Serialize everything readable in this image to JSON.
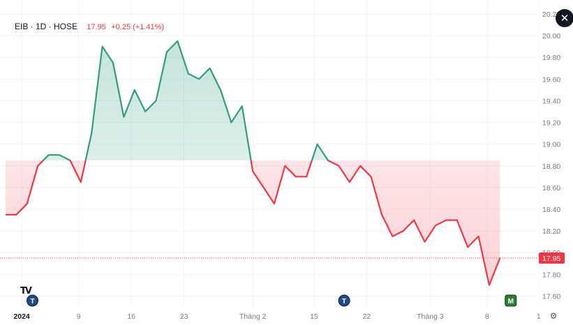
{
  "header": {
    "symbol": "EIB · 1D · HOSE",
    "price": "17.95",
    "change": "+0.25 (+1.41%)"
  },
  "close_icon": "close-icon",
  "logo": "TV",
  "settings_icon": "gear-icon",
  "colors": {
    "up": "#2e9e7e",
    "down": "#f23645",
    "grid": "#f0f3fa",
    "axis_text": "#787b86",
    "price_label_bg": "#f23645"
  },
  "chart_data": {
    "type": "area",
    "baseline": 18.85,
    "last_price": 17.95,
    "last_price_label": "17.95",
    "ylim": [
      17.5,
      20.1
    ],
    "y_ticks": [
      {
        "value": 17.6,
        "label": "17.60"
      },
      {
        "value": 17.8,
        "label": "17.80"
      },
      {
        "value": 18.0,
        "label": "18.00"
      },
      {
        "value": 18.2,
        "label": "18.20"
      },
      {
        "value": 18.4,
        "label": "18.40"
      },
      {
        "value": 18.6,
        "label": "18.60"
      },
      {
        "value": 18.8,
        "label": "18.80"
      },
      {
        "value": 19.0,
        "label": "19.00"
      },
      {
        "value": 19.2,
        "label": "19.20"
      },
      {
        "value": 19.4,
        "label": "19.40"
      },
      {
        "value": 19.6,
        "label": "19.60"
      },
      {
        "value": 19.8,
        "label": "19.80"
      },
      {
        "value": 20.0,
        "label": "20.00"
      },
      {
        "value": 20.2,
        "label": "20.20"
      }
    ],
    "x_ticks": [
      {
        "index": 1.5,
        "label": "2024",
        "bold": true
      },
      {
        "index": 6.8,
        "label": "9",
        "bold": false
      },
      {
        "index": 11.7,
        "label": "16",
        "bold": false
      },
      {
        "index": 16.6,
        "label": "23",
        "bold": false
      },
      {
        "index": 23.0,
        "label": "Tháng 2",
        "bold": false
      },
      {
        "index": 28.7,
        "label": "15",
        "bold": false
      },
      {
        "index": 33.6,
        "label": "22",
        "bold": false
      },
      {
        "index": 39.5,
        "label": "Tháng 3",
        "bold": false
      },
      {
        "index": 44.8,
        "label": "8",
        "bold": false
      },
      {
        "index": 49.6,
        "label": "1",
        "bold": false
      }
    ],
    "values": [
      18.35,
      18.35,
      18.45,
      18.8,
      18.9,
      18.9,
      18.85,
      18.65,
      19.1,
      19.9,
      19.75,
      19.25,
      19.5,
      19.3,
      19.4,
      19.85,
      19.95,
      19.65,
      19.6,
      19.7,
      19.5,
      19.2,
      19.35,
      18.75,
      18.6,
      18.45,
      18.8,
      18.7,
      18.7,
      19.0,
      18.85,
      18.8,
      18.65,
      18.8,
      18.7,
      18.35,
      18.15,
      18.2,
      18.3,
      18.1,
      18.25,
      18.3,
      18.3,
      18.05,
      18.15,
      17.7,
      17.95
    ],
    "markers": [
      {
        "index": 2.5,
        "label": "T",
        "kind": "earnings"
      },
      {
        "index": 31.5,
        "label": "T",
        "kind": "earnings"
      },
      {
        "index": 47.0,
        "label": "M",
        "kind": "meeting"
      }
    ]
  }
}
